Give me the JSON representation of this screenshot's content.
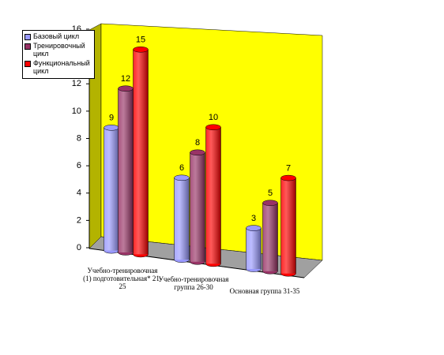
{
  "chart_data": {
    "type": "bar",
    "categories": [
      "Учебно-тренировочная (1) подготовительная* 21-25",
      "Учебно-тренировочная группа 26-30",
      "Основная группа 31-35"
    ],
    "series": [
      {
        "name": "Базовый цикл",
        "color": "#9999ff",
        "values": [
          9,
          6,
          3
        ]
      },
      {
        "name": "Тренировочный цикл",
        "color": "#993366",
        "values": [
          12,
          8,
          5
        ]
      },
      {
        "name": "Функциональный цикл",
        "color": "#ff0000",
        "values": [
          15,
          10,
          7
        ]
      }
    ],
    "ylim": [
      0,
      16
    ],
    "yticks": [
      0,
      2,
      4,
      6,
      8,
      10,
      12,
      14,
      16
    ]
  }
}
